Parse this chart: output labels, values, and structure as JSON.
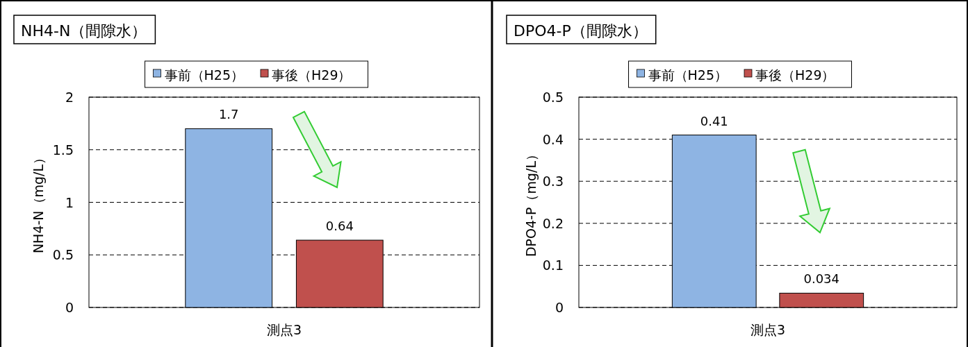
{
  "chart_data": [
    {
      "type": "bar",
      "title": "NH4-N（間隙水）",
      "ylabel": "NH4-N（mg/L）",
      "categories": [
        "測点3"
      ],
      "series": [
        {
          "name": "事前（H25）",
          "color": "#8eb4e3",
          "values": [
            1.7
          ]
        },
        {
          "name": "事後（H29）",
          "color": "#c0504d",
          "values": [
            0.64
          ]
        }
      ],
      "ylim": [
        0,
        2
      ],
      "yticks": [
        0,
        0.5,
        1,
        1.5,
        2
      ],
      "grid": "y",
      "legend": "top",
      "data_labels": true
    },
    {
      "type": "bar",
      "title": "DPO4-P（間隙水）",
      "ylabel": "DPO4-P（mg/L）",
      "categories": [
        "測点3"
      ],
      "series": [
        {
          "name": "事前（H25）",
          "color": "#8eb4e3",
          "values": [
            0.41
          ]
        },
        {
          "name": "事後（H29）",
          "color": "#c0504d",
          "values": [
            0.034
          ]
        }
      ],
      "ylim": [
        0,
        0.5
      ],
      "yticks": [
        0,
        0.1,
        0.2,
        0.3,
        0.4,
        0.5
      ],
      "grid": "y",
      "legend": "top",
      "data_labels": true
    }
  ]
}
